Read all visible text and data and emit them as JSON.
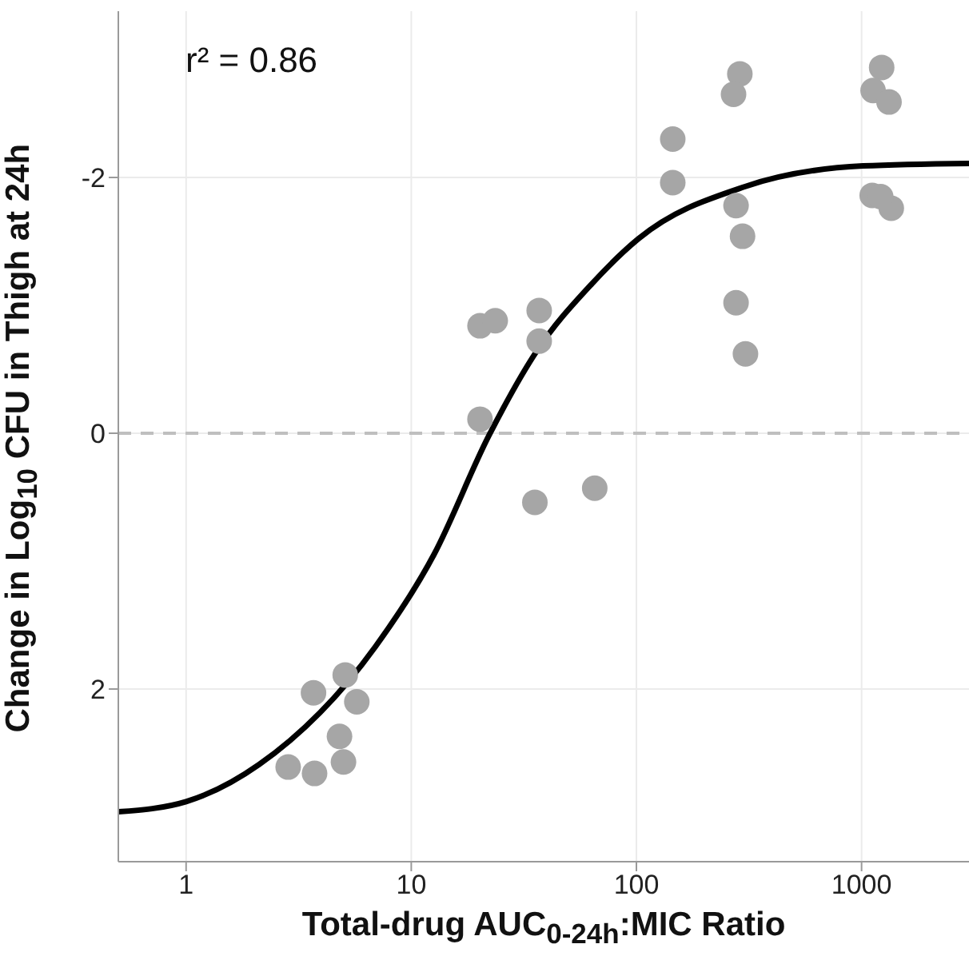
{
  "chart_data": {
    "type": "scatter",
    "xlabel": "Total-drug AUC$_{0-24h}$:MIC Ratio",
    "ylabel": "Change in Log$_{10}$ CFU in Thigh at 24h",
    "annotations": [
      "r² = 0.86"
    ],
    "log": "x",
    "xlim": [
      0.5,
      3000
    ],
    "xticks": [
      1,
      10,
      100,
      1000
    ],
    "ylim": [
      3.35,
      -3.3
    ],
    "yticks": [
      -2,
      0,
      2
    ],
    "grid": true,
    "ref_lines": [
      {
        "axis": "y",
        "value": 0,
        "color": "#bfbfbf",
        "line_style": "dashed"
      }
    ],
    "series": [
      {
        "marker": "circle",
        "color": "#a6a6a6",
        "x": [
          3.68,
          5.09,
          5.73,
          4.8,
          2.84,
          3.72,
          5.0,
          20.2,
          23.6,
          37.0,
          37.0,
          20.2,
          35.4,
          65.3,
          145,
          145,
          288,
          270,
          277,
          296,
          277,
          305,
          1228,
          1125,
          1324,
          1115,
          1355,
          1216
        ],
        "values": [
          2.03,
          1.89,
          2.1,
          2.37,
          2.61,
          2.66,
          2.57,
          -0.84,
          -0.88,
          -0.96,
          -0.72,
          -0.11,
          0.54,
          0.43,
          -2.3,
          -1.96,
          -2.81,
          -2.65,
          -1.78,
          -1.54,
          -1.02,
          -0.62,
          -2.86,
          -2.68,
          -2.59,
          -1.86,
          -1.76,
          -1.85
        ]
      },
      {
        "type": "line",
        "color": "#000000",
        "x": [
          0.5,
          1,
          2.11,
          6.92,
          12.6,
          22.1,
          36,
          63.5,
          102,
          305,
          1015,
          3000
        ],
        "values": [
          2.96,
          2.88,
          2.59,
          1.67,
          0.95,
          0.02,
          -0.64,
          -1.17,
          -1.52,
          -1.93,
          -2.09,
          -2.11
        ]
      }
    ]
  }
}
